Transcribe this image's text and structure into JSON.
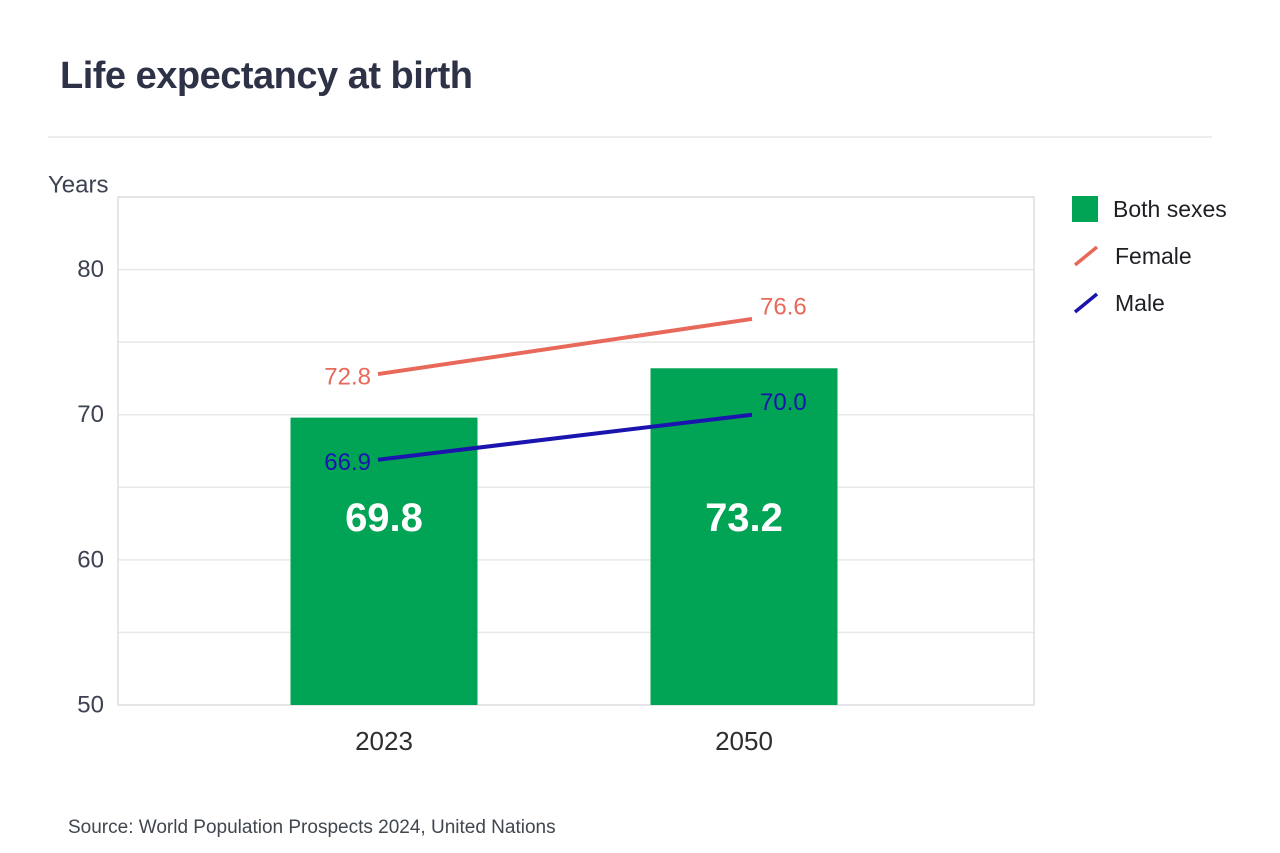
{
  "header": {
    "title": "Life expectancy at birth"
  },
  "footer": {
    "source": "Source: World Population Prospects 2024, United Nations"
  },
  "chart_data": {
    "type": "bar",
    "title": "Life expectancy at birth",
    "xlabel": "",
    "ylabel": "Years",
    "categories": [
      "2023",
      "2050"
    ],
    "series": [
      {
        "name": "Both sexes",
        "type": "bar",
        "color": "#00A454",
        "label_color": "#FFFFFF",
        "values": [
          69.8,
          73.2
        ]
      },
      {
        "name": "Female",
        "type": "line",
        "color": "#E8685A",
        "values": [
          72.8,
          76.6
        ]
      },
      {
        "name": "Male",
        "type": "line",
        "color": "#1B14AE",
        "values": [
          66.9,
          70.0
        ]
      }
    ],
    "ylim": [
      50,
      85
    ],
    "yticks": [
      50,
      60,
      70,
      80
    ],
    "grid_step": 5,
    "grid": "horizontal",
    "legend_position": "top-right",
    "value_decimals": 1,
    "axis_text_color": "#3C4252",
    "category_text_color": "#2E2E30",
    "grid_color": "#E8E8EA",
    "border_color": "#DEDEE2"
  }
}
